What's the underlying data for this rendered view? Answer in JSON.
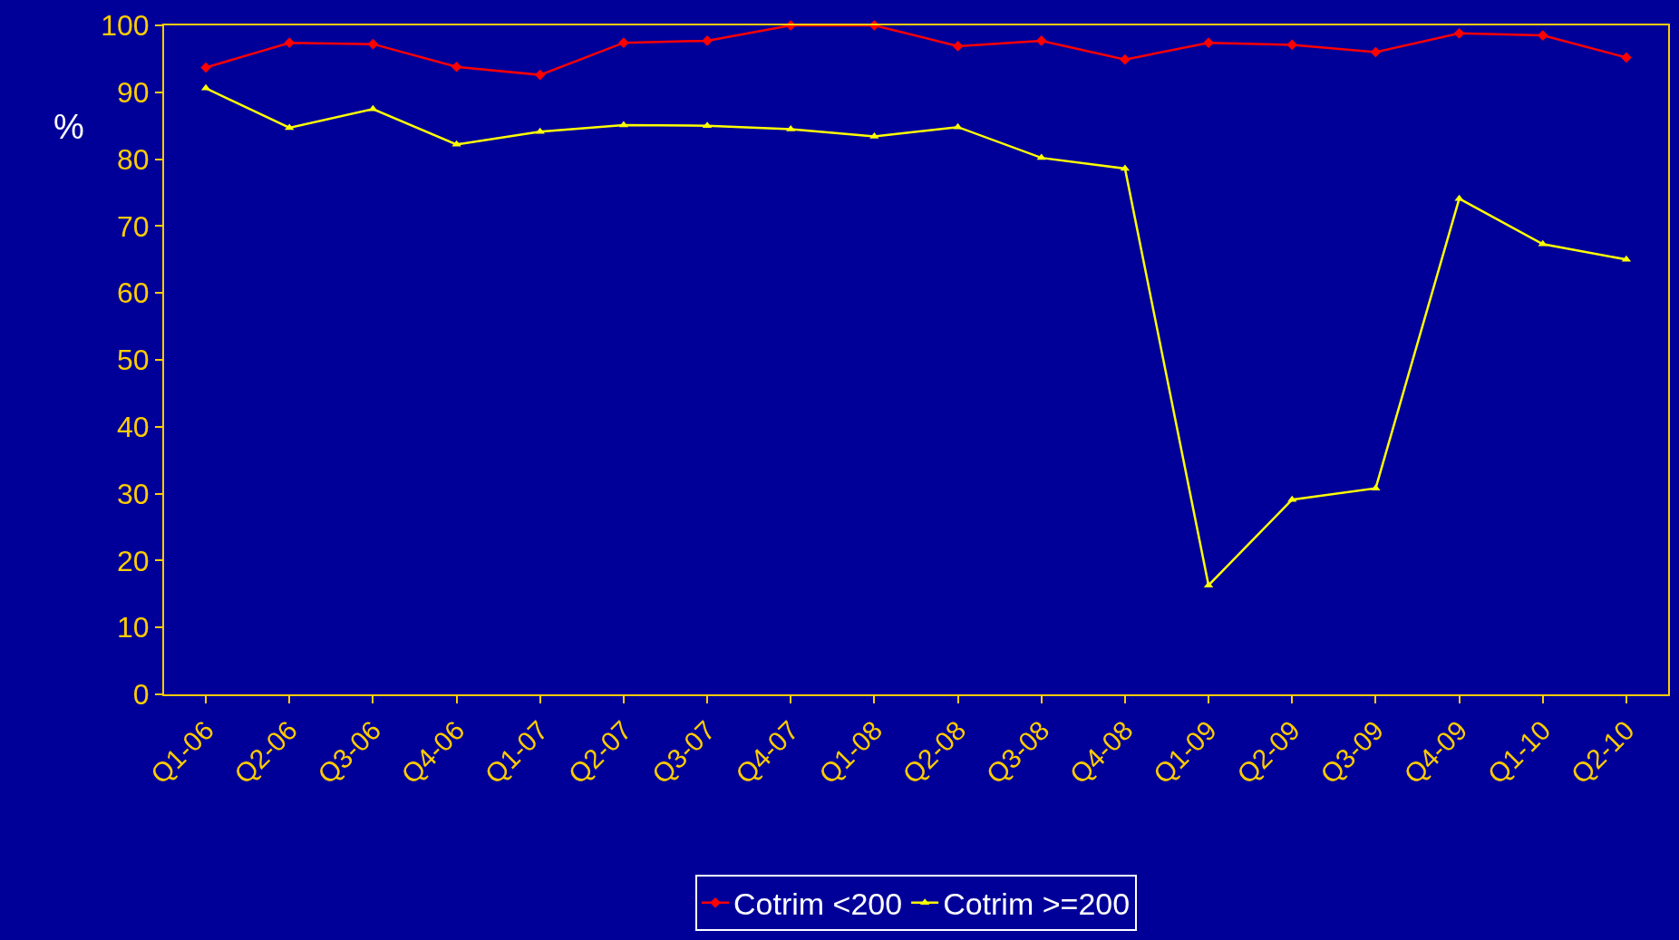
{
  "chart_data": {
    "type": "line",
    "ylabel": "%",
    "categories": [
      "Q1-06",
      "Q2-06",
      "Q3-06",
      "Q4-06",
      "Q1-07",
      "Q2-07",
      "Q3-07",
      "Q4-07",
      "Q1-08",
      "Q2-08",
      "Q3-08",
      "Q4-08",
      "Q1-09",
      "Q2-09",
      "Q3-09",
      "Q4-09",
      "Q1-10",
      "Q2-10"
    ],
    "series": [
      {
        "name": "Cotrim <200",
        "color": "#ff0000",
        "marker": "diamond",
        "values": [
          93.7,
          97.4,
          97.2,
          93.8,
          92.6,
          97.4,
          97.7,
          100,
          100,
          96.9,
          97.7,
          94.9,
          97.4,
          97.1,
          96,
          98.8,
          98.5,
          95.2
        ]
      },
      {
        "name": "Cotrim >=200",
        "color": "#ffff00",
        "marker": "triangle",
        "values": [
          90.6,
          84.7,
          87.5,
          82.2,
          84.1,
          85.1,
          85,
          84.5,
          83.4,
          84.8,
          80.2,
          78.6,
          16.3,
          29.1,
          30.8,
          74.1,
          67.3,
          65
        ]
      }
    ],
    "ylim": [
      0,
      100
    ],
    "yticks": [
      0,
      10,
      20,
      30,
      40,
      50,
      60,
      70,
      80,
      90,
      100
    ],
    "grid": false,
    "legend": "bottom"
  }
}
